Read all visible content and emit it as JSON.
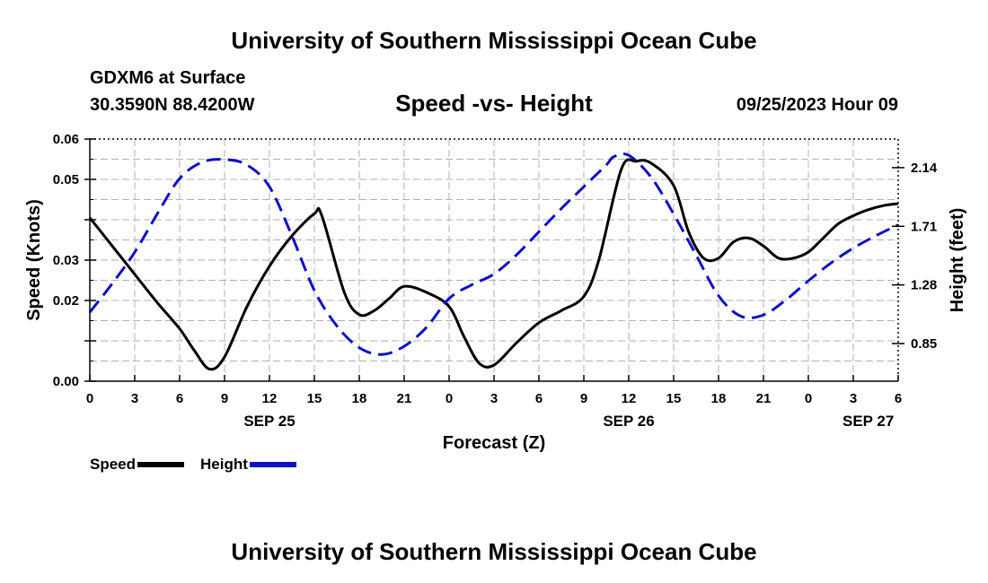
{
  "header": {
    "title": "University of Southern Mississippi Ocean Cube",
    "station": "GDXM6 at Surface",
    "coordinates": "30.3590N  88.4200W",
    "subtitle": "Speed -vs- Height",
    "datetime": "09/25/2023 Hour 09"
  },
  "footer": {
    "title": "University of Southern Mississippi Ocean Cube"
  },
  "legend": {
    "speed_label": "Speed",
    "height_label": "Height"
  },
  "chart_data": {
    "type": "line",
    "title": "Speed -vs- Height",
    "xlabel": "Forecast (Z)",
    "ylabel": "Speed (Knots)",
    "y2label": "Height (feet)",
    "x_range": [
      0,
      54
    ],
    "x_ticks": [
      0,
      3,
      6,
      9,
      12,
      15,
      18,
      21,
      24,
      27,
      30,
      33,
      36,
      39,
      42,
      45,
      48,
      51,
      54
    ],
    "x_tick_labels": [
      "0",
      "3",
      "6",
      "9",
      "12",
      "15",
      "18",
      "21",
      "0",
      "3",
      "6",
      "9",
      "12",
      "15",
      "18",
      "21",
      "0",
      "3",
      "6"
    ],
    "date_labels": [
      {
        "x": 12,
        "label": "SEP 25"
      },
      {
        "x": 36,
        "label": "SEP 26"
      },
      {
        "x": 52,
        "label": "SEP 27"
      }
    ],
    "ylim": [
      0,
      0.06
    ],
    "y_ticks": [
      0,
      0.01,
      0.02,
      0.03,
      0.04,
      0.05,
      0.06
    ],
    "y_tick_labels": [
      "0.00",
      "",
      "0.02",
      "0.03",
      "",
      "0.05",
      "0.06"
    ],
    "y2lim": [
      0.574,
      2.35
    ],
    "y2_ticks": [
      0.85,
      1.28,
      1.71,
      2.14
    ],
    "y2_tick_labels": [
      "0.85",
      "1.28",
      "1.71",
      "2.14"
    ],
    "grid": true,
    "colors": {
      "speed": "#000000",
      "height": "#1010c8",
      "grid": "#b0b0b0"
    },
    "series": [
      {
        "name": "Speed",
        "axis": "left",
        "style": "solid",
        "x": [
          0,
          1.5,
          3,
          4.5,
          6,
          7,
          8,
          9,
          10.5,
          12,
          13.5,
          15,
          15.5,
          17,
          18,
          19,
          20,
          21,
          22.5,
          24,
          25,
          26,
          27,
          28.5,
          30,
          31.5,
          33,
          34,
          35.5,
          36.5,
          37.5,
          39,
          40,
          41,
          42,
          43,
          44,
          45,
          46,
          47,
          48,
          49,
          50,
          51,
          52,
          53,
          54
        ],
        "values": [
          0.0405,
          0.0335,
          0.0265,
          0.0195,
          0.013,
          0.0075,
          0.003,
          0.006,
          0.0185,
          0.0285,
          0.036,
          0.0415,
          0.041,
          0.022,
          0.0165,
          0.0175,
          0.0205,
          0.0235,
          0.022,
          0.0185,
          0.011,
          0.0045,
          0.004,
          0.0095,
          0.0145,
          0.0175,
          0.021,
          0.03,
          0.0525,
          0.0545,
          0.054,
          0.0485,
          0.037,
          0.0305,
          0.0305,
          0.0345,
          0.0355,
          0.0335,
          0.0305,
          0.0305,
          0.032,
          0.0355,
          0.039,
          0.041,
          0.0425,
          0.0435,
          0.044
        ]
      },
      {
        "name": "Height",
        "axis": "right",
        "style": "dashed",
        "x": [
          0,
          1.5,
          3,
          4.5,
          6,
          7.5,
          9,
          10.5,
          12,
          13.5,
          15,
          16.5,
          18,
          19.5,
          21,
          22.5,
          24,
          25.5,
          27,
          28.5,
          30,
          31.5,
          33,
          34.5,
          35,
          36,
          37.5,
          39,
          40.5,
          42,
          43.5,
          45,
          46.5,
          48,
          49.5,
          51,
          52.5,
          54
        ],
        "values": [
          1.08,
          1.29,
          1.52,
          1.8,
          2.06,
          2.18,
          2.2,
          2.16,
          2.0,
          1.64,
          1.24,
          0.98,
          0.82,
          0.77,
          0.83,
          0.97,
          1.18,
          1.28,
          1.36,
          1.5,
          1.67,
          1.84,
          2.0,
          2.16,
          2.22,
          2.23,
          2.07,
          1.8,
          1.5,
          1.2,
          1.05,
          1.06,
          1.17,
          1.31,
          1.44,
          1.55,
          1.64,
          1.72
        ]
      }
    ]
  }
}
